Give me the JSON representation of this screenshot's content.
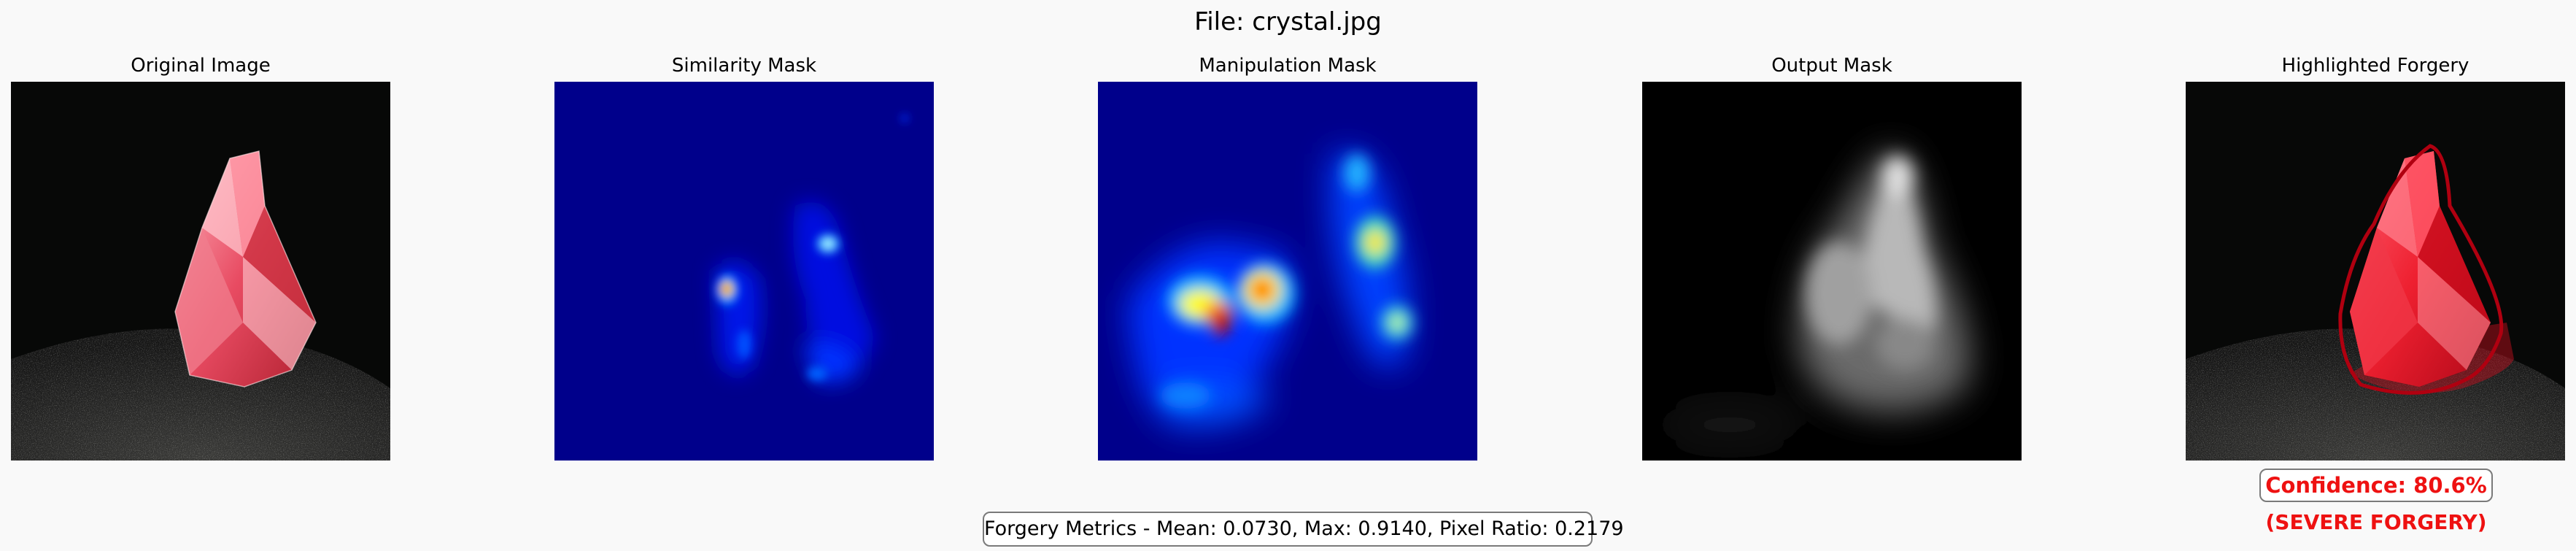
{
  "figure": {
    "title": "File: crystal.jpg"
  },
  "panels": [
    {
      "id": "original",
      "title": "Original Image"
    },
    {
      "id": "similarity",
      "title": "Similarity Mask"
    },
    {
      "id": "manipulation",
      "title": "Manipulation Mask"
    },
    {
      "id": "output",
      "title": "Output Mask"
    },
    {
      "id": "highlighted",
      "title": "Highlighted Forgery"
    }
  ],
  "metrics": {
    "text": "Forgery Metrics - Mean: 0.0730, Max: 0.9140, Pixel Ratio: 0.2179",
    "mean": 0.073,
    "max": 0.914,
    "pixel_ratio": 0.2179
  },
  "result": {
    "confidence_label": "Confidence: 80.6%",
    "confidence_percent": 80.6,
    "verdict": "(SEVERE FORGERY)"
  },
  "colors": {
    "background": "#f9f9f9",
    "alert_red": "#ee1111",
    "heatmap_low": "#00008b",
    "heatmap_high": "#ff0000",
    "crystal": "#e85a70"
  },
  "icons": []
}
